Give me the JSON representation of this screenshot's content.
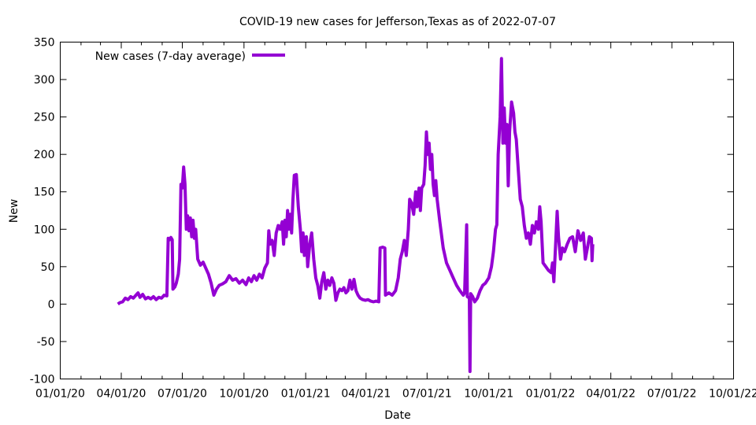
{
  "chart_data": {
    "type": "line",
    "title": "COVID-19 new cases for Jefferson,Texas as of 2022-07-07",
    "xlabel": "Date",
    "ylabel": "New",
    "xlim": [
      "2020-01-01",
      "2022-10-01"
    ],
    "ylim": [
      -100,
      350
    ],
    "x_ticks": [
      "01/01/20",
      "04/01/20",
      "07/01/20",
      "10/01/20",
      "01/01/21",
      "04/01/21",
      "07/01/21",
      "10/01/21",
      "01/01/22",
      "04/01/22",
      "07/01/22",
      "10/01/22"
    ],
    "y_ticks": [
      -100,
      -50,
      0,
      50,
      100,
      150,
      200,
      250,
      300,
      350
    ],
    "grid": false,
    "legend_position": "top-left",
    "series": [
      {
        "name": "New cases (7-day average)",
        "color": "#9400d3",
        "points": [
          [
            "2020-03-27",
            0
          ],
          [
            "2020-03-30",
            2
          ],
          [
            "2020-04-03",
            3
          ],
          [
            "2020-04-07",
            8
          ],
          [
            "2020-04-11",
            6
          ],
          [
            "2020-04-15",
            10
          ],
          [
            "2020-04-19",
            8
          ],
          [
            "2020-04-23",
            12
          ],
          [
            "2020-04-26",
            15
          ],
          [
            "2020-04-29",
            9
          ],
          [
            "2020-05-03",
            13
          ],
          [
            "2020-05-07",
            7
          ],
          [
            "2020-05-11",
            9
          ],
          [
            "2020-05-15",
            7
          ],
          [
            "2020-05-19",
            10
          ],
          [
            "2020-05-23",
            6
          ],
          [
            "2020-05-27",
            9
          ],
          [
            "2020-05-31",
            8
          ],
          [
            "2020-06-04",
            12
          ],
          [
            "2020-06-08",
            11
          ],
          [
            "2020-06-10",
            88
          ],
          [
            "2020-06-12",
            86
          ],
          [
            "2020-06-14",
            89
          ],
          [
            "2020-06-16",
            86
          ],
          [
            "2020-06-17",
            20
          ],
          [
            "2020-06-20",
            23
          ],
          [
            "2020-06-22",
            28
          ],
          [
            "2020-06-25",
            40
          ],
          [
            "2020-06-27",
            60
          ],
          [
            "2020-06-29",
            160
          ],
          [
            "2020-07-01",
            155
          ],
          [
            "2020-07-03",
            183
          ],
          [
            "2020-07-05",
            160
          ],
          [
            "2020-07-07",
            100
          ],
          [
            "2020-07-09",
            118
          ],
          [
            "2020-07-11",
            98
          ],
          [
            "2020-07-13",
            115
          ],
          [
            "2020-07-15",
            90
          ],
          [
            "2020-07-17",
            112
          ],
          [
            "2020-07-19",
            88
          ],
          [
            "2020-07-21",
            100
          ],
          [
            "2020-07-24",
            60
          ],
          [
            "2020-07-28",
            52
          ],
          [
            "2020-08-01",
            56
          ],
          [
            "2020-08-05",
            48
          ],
          [
            "2020-08-09",
            40
          ],
          [
            "2020-08-13",
            28
          ],
          [
            "2020-08-17",
            12
          ],
          [
            "2020-08-21",
            20
          ],
          [
            "2020-08-25",
            25
          ],
          [
            "2020-08-30",
            27
          ],
          [
            "2020-09-04",
            30
          ],
          [
            "2020-09-09",
            38
          ],
          [
            "2020-09-14",
            32
          ],
          [
            "2020-09-19",
            34
          ],
          [
            "2020-09-24",
            28
          ],
          [
            "2020-09-29",
            32
          ],
          [
            "2020-10-04",
            26
          ],
          [
            "2020-10-08",
            35
          ],
          [
            "2020-10-12",
            30
          ],
          [
            "2020-10-16",
            38
          ],
          [
            "2020-10-20",
            32
          ],
          [
            "2020-10-24",
            40
          ],
          [
            "2020-10-28",
            35
          ],
          [
            "2020-11-01",
            48
          ],
          [
            "2020-11-05",
            55
          ],
          [
            "2020-11-07",
            98
          ],
          [
            "2020-11-09",
            80
          ],
          [
            "2020-11-12",
            85
          ],
          [
            "2020-11-15",
            65
          ],
          [
            "2020-11-18",
            95
          ],
          [
            "2020-11-21",
            105
          ],
          [
            "2020-11-24",
            100
          ],
          [
            "2020-11-27",
            110
          ],
          [
            "2020-11-29",
            80
          ],
          [
            "2020-12-01",
            112
          ],
          [
            "2020-12-03",
            90
          ],
          [
            "2020-12-05",
            125
          ],
          [
            "2020-12-07",
            100
          ],
          [
            "2020-12-09",
            120
          ],
          [
            "2020-12-11",
            95
          ],
          [
            "2020-12-13",
            140
          ],
          [
            "2020-12-15",
            172
          ],
          [
            "2020-12-18",
            173
          ],
          [
            "2020-12-21",
            130
          ],
          [
            "2020-12-24",
            100
          ],
          [
            "2020-12-26",
            70
          ],
          [
            "2020-12-28",
            95
          ],
          [
            "2020-12-30",
            65
          ],
          [
            "2021-01-02",
            90
          ],
          [
            "2021-01-04",
            50
          ],
          [
            "2021-01-07",
            80
          ],
          [
            "2021-01-10",
            95
          ],
          [
            "2021-01-13",
            60
          ],
          [
            "2021-01-16",
            35
          ],
          [
            "2021-01-19",
            25
          ],
          [
            "2021-01-22",
            8
          ],
          [
            "2021-01-25",
            30
          ],
          [
            "2021-01-28",
            42
          ],
          [
            "2021-01-31",
            20
          ],
          [
            "2021-02-03",
            32
          ],
          [
            "2021-02-06",
            25
          ],
          [
            "2021-02-09",
            35
          ],
          [
            "2021-02-12",
            28
          ],
          [
            "2021-02-15",
            5
          ],
          [
            "2021-02-18",
            15
          ],
          [
            "2021-02-21",
            20
          ],
          [
            "2021-02-24",
            18
          ],
          [
            "2021-02-27",
            22
          ],
          [
            "2021-03-02",
            15
          ],
          [
            "2021-03-05",
            18
          ],
          [
            "2021-03-08",
            32
          ],
          [
            "2021-03-11",
            20
          ],
          [
            "2021-03-14",
            33
          ],
          [
            "2021-03-17",
            18
          ],
          [
            "2021-03-20",
            12
          ],
          [
            "2021-03-23",
            8
          ],
          [
            "2021-03-27",
            6
          ],
          [
            "2021-03-31",
            5
          ],
          [
            "2021-04-04",
            6
          ],
          [
            "2021-04-08",
            4
          ],
          [
            "2021-04-12",
            3
          ],
          [
            "2021-04-16",
            4
          ],
          [
            "2021-04-20",
            3
          ],
          [
            "2021-04-22",
            75
          ],
          [
            "2021-04-26",
            76
          ],
          [
            "2021-04-29",
            75
          ],
          [
            "2021-04-30",
            12
          ],
          [
            "2021-05-05",
            15
          ],
          [
            "2021-05-10",
            12
          ],
          [
            "2021-05-15",
            18
          ],
          [
            "2021-05-19",
            35
          ],
          [
            "2021-05-22",
            60
          ],
          [
            "2021-05-25",
            70
          ],
          [
            "2021-05-28",
            85
          ],
          [
            "2021-05-31",
            65
          ],
          [
            "2021-06-03",
            100
          ],
          [
            "2021-06-05",
            140
          ],
          [
            "2021-06-08",
            135
          ],
          [
            "2021-06-11",
            120
          ],
          [
            "2021-06-14",
            150
          ],
          [
            "2021-06-16",
            130
          ],
          [
            "2021-06-19",
            155
          ],
          [
            "2021-06-21",
            125
          ],
          [
            "2021-06-23",
            155
          ],
          [
            "2021-06-26",
            160
          ],
          [
            "2021-06-28",
            185
          ],
          [
            "2021-06-30",
            230
          ],
          [
            "2021-07-02",
            200
          ],
          [
            "2021-07-04",
            215
          ],
          [
            "2021-07-06",
            180
          ],
          [
            "2021-07-08",
            200
          ],
          [
            "2021-07-10",
            160
          ],
          [
            "2021-07-12",
            145
          ],
          [
            "2021-07-14",
            165
          ],
          [
            "2021-07-16",
            140
          ],
          [
            "2021-07-20",
            110
          ],
          [
            "2021-07-25",
            75
          ],
          [
            "2021-07-30",
            55
          ],
          [
            "2021-08-04",
            45
          ],
          [
            "2021-08-09",
            35
          ],
          [
            "2021-08-14",
            25
          ],
          [
            "2021-08-19",
            18
          ],
          [
            "2021-08-24",
            12
          ],
          [
            "2021-08-26",
            15
          ],
          [
            "2021-08-29",
            106
          ],
          [
            "2021-08-30",
            10
          ],
          [
            "2021-09-02",
            8
          ],
          [
            "2021-09-03",
            -90
          ],
          [
            "2021-09-04",
            14
          ],
          [
            "2021-09-07",
            10
          ],
          [
            "2021-09-10",
            3
          ],
          [
            "2021-09-14",
            8
          ],
          [
            "2021-09-18",
            18
          ],
          [
            "2021-09-22",
            25
          ],
          [
            "2021-09-26",
            28
          ],
          [
            "2021-10-01",
            35
          ],
          [
            "2021-10-05",
            50
          ],
          [
            "2021-10-08",
            70
          ],
          [
            "2021-10-11",
            100
          ],
          [
            "2021-10-13",
            106
          ],
          [
            "2021-10-15",
            200
          ],
          [
            "2021-10-18",
            250
          ],
          [
            "2021-10-20",
            328
          ],
          [
            "2021-10-22",
            215
          ],
          [
            "2021-10-24",
            262
          ],
          [
            "2021-10-26",
            215
          ],
          [
            "2021-10-28",
            240
          ],
          [
            "2021-10-30",
            158
          ],
          [
            "2021-11-01",
            230
          ],
          [
            "2021-11-04",
            270
          ],
          [
            "2021-11-07",
            255
          ],
          [
            "2021-11-09",
            230
          ],
          [
            "2021-11-11",
            220
          ],
          [
            "2021-11-14",
            180
          ],
          [
            "2021-11-17",
            140
          ],
          [
            "2021-11-20",
            130
          ],
          [
            "2021-11-23",
            105
          ],
          [
            "2021-11-26",
            88
          ],
          [
            "2021-11-29",
            95
          ],
          [
            "2021-12-02",
            80
          ],
          [
            "2021-12-05",
            105
          ],
          [
            "2021-12-08",
            95
          ],
          [
            "2021-12-11",
            110
          ],
          [
            "2021-12-14",
            100
          ],
          [
            "2021-12-16",
            130
          ],
          [
            "2021-12-18",
            110
          ],
          [
            "2021-12-21",
            55
          ],
          [
            "2021-12-25",
            50
          ],
          [
            "2021-12-29",
            45
          ],
          [
            "2022-01-02",
            42
          ],
          [
            "2022-01-04",
            55
          ],
          [
            "2022-01-06",
            30
          ],
          [
            "2022-01-09",
            85
          ],
          [
            "2022-01-11",
            124
          ],
          [
            "2022-01-13",
            90
          ],
          [
            "2022-01-16",
            60
          ],
          [
            "2022-01-19",
            75
          ],
          [
            "2022-01-22",
            70
          ],
          [
            "2022-01-26",
            80
          ],
          [
            "2022-01-30",
            88
          ],
          [
            "2022-02-03",
            90
          ],
          [
            "2022-02-07",
            70
          ],
          [
            "2022-02-11",
            98
          ],
          [
            "2022-02-15",
            85
          ],
          [
            "2022-02-19",
            95
          ],
          [
            "2022-02-22",
            60
          ],
          [
            "2022-02-25",
            75
          ],
          [
            "2022-02-28",
            90
          ],
          [
            "2022-03-03",
            88
          ],
          [
            "2022-03-04",
            58
          ],
          [
            "2022-03-05",
            80
          ]
        ]
      }
    ]
  }
}
